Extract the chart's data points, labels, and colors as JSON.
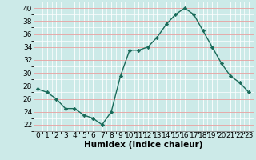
{
  "x": [
    0,
    1,
    2,
    3,
    4,
    5,
    6,
    7,
    8,
    9,
    10,
    11,
    12,
    13,
    14,
    15,
    16,
    17,
    18,
    19,
    20,
    21,
    22,
    23
  ],
  "y": [
    27.5,
    27,
    26,
    24.5,
    24.5,
    23.5,
    23,
    22,
    24,
    29.5,
    33.5,
    33.5,
    34,
    35.5,
    37.5,
    39,
    40,
    39,
    36.5,
    34,
    31.5,
    29.5,
    28.5,
    27
  ],
  "line_color": "#1a6b5a",
  "marker": "D",
  "marker_size": 2.2,
  "bg_color": "#cceae8",
  "grid_color_major": "#e8a0a0",
  "grid_color_minor": "#ffffff",
  "xlabel": "Humidex (Indice chaleur)",
  "ylim": [
    21,
    41
  ],
  "xlim": [
    -0.5,
    23.5
  ],
  "yticks": [
    22,
    24,
    26,
    28,
    30,
    32,
    34,
    36,
    38,
    40
  ],
  "xticks": [
    0,
    1,
    2,
    3,
    4,
    5,
    6,
    7,
    8,
    9,
    10,
    11,
    12,
    13,
    14,
    15,
    16,
    17,
    18,
    19,
    20,
    21,
    22,
    23
  ],
  "xlabel_fontsize": 7.5,
  "tick_fontsize": 6.5,
  "line_width": 1.0
}
